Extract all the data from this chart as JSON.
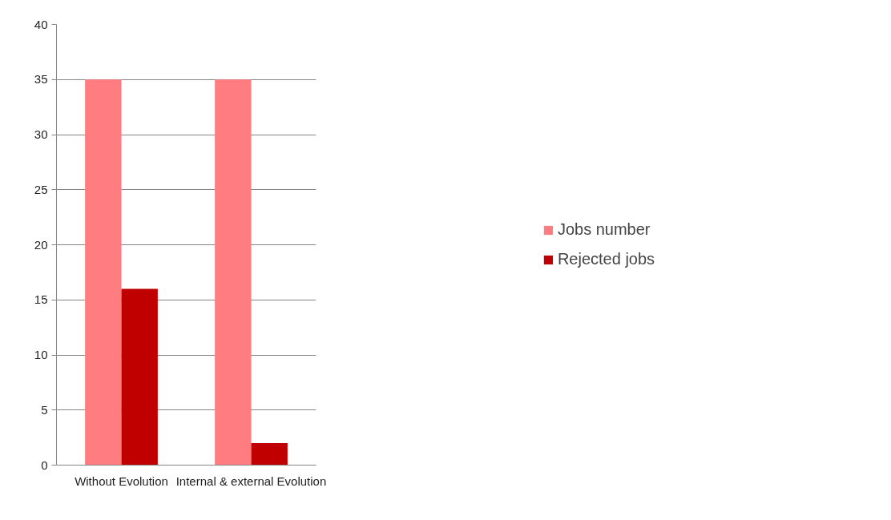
{
  "chart_data": {
    "type": "bar",
    "categories": [
      "Without Evolution",
      "Internal & external Evolution"
    ],
    "series": [
      {
        "name": "Jobs number",
        "color": "#ff7c80",
        "values": [
          35,
          35
        ]
      },
      {
        "name": "Rejected jobs",
        "color": "#c00000",
        "values": [
          16,
          2
        ]
      }
    ],
    "ylim": [
      0,
      40
    ],
    "yticks": [
      0,
      5,
      10,
      15,
      20,
      25,
      30,
      35,
      40
    ],
    "grid": "y",
    "legend": "right"
  }
}
